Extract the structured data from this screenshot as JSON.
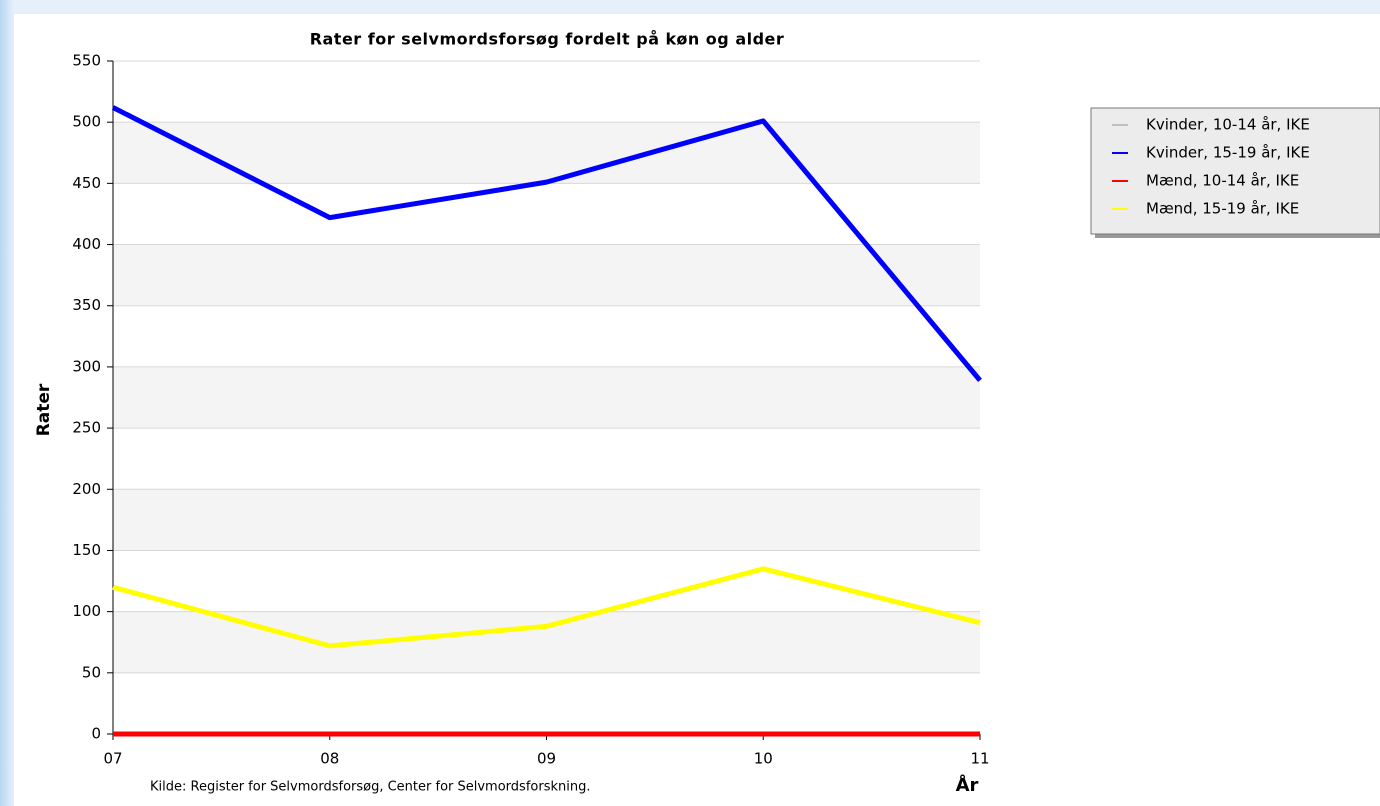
{
  "chart_data": {
    "type": "line",
    "title": "Rater for selvmordsforsøg fordelt på køn og alder",
    "y_label": "Rater",
    "x_label": "År",
    "source": "Kilde: Register for Selvmordsforsøg, Center for Selvmordsforskning.",
    "categories": [
      "07",
      "08",
      "09",
      "10",
      "11"
    ],
    "series": [
      {
        "name": "Kvinder, 10-14 år, IKE",
        "color": "#c0c0c0",
        "values": [
          0,
          0,
          0,
          0,
          0
        ]
      },
      {
        "name": "Kvinder, 15-19 år, IKE",
        "color": "#0000ff",
        "values": [
          512,
          422,
          451,
          501,
          289
        ]
      },
      {
        "name": "Mænd, 10-14 år, IKE",
        "color": "#ff0000",
        "values": [
          0,
          0,
          0,
          0,
          0
        ]
      },
      {
        "name": "Mænd, 15-19 år, IKE",
        "color": "#ffff00",
        "values": [
          120,
          72,
          88,
          135,
          91
        ]
      }
    ],
    "ylim": [
      0,
      550
    ],
    "yticks": [
      0,
      50,
      100,
      150,
      200,
      250,
      300,
      350,
      400,
      450,
      500,
      550
    ],
    "grid": true,
    "alternate_bands": true,
    "legend": "right"
  }
}
